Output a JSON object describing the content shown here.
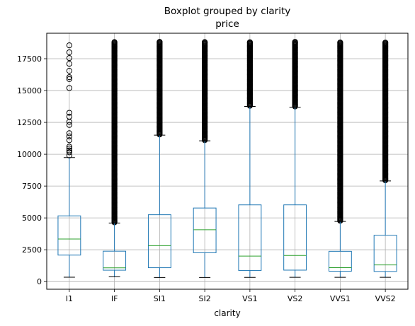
{
  "chart_data": {
    "type": "box",
    "suptitle": "Boxplot grouped by clarity",
    "title": "price",
    "xlabel": "clarity",
    "ylabel": "",
    "ylim": [
      -600,
      19500
    ],
    "yticks": [
      0,
      2500,
      5000,
      7500,
      10000,
      12500,
      15000,
      17500
    ],
    "grid": true,
    "categories": [
      "I1",
      "IF",
      "SI1",
      "SI2",
      "VS1",
      "VS2",
      "VVS1",
      "VVS2"
    ],
    "boxes": [
      {
        "min": 345,
        "q1": 2080,
        "median": 3344,
        "q3": 5161,
        "whisker_high": 9740,
        "outliers": [
          9900,
          10150,
          10300,
          10450,
          10600,
          11100,
          11400,
          11650,
          12300,
          12550,
          12950,
          13250,
          15200,
          15900,
          16050,
          16550,
          17100,
          17550,
          18000,
          18550
        ]
      },
      {
        "min": 369,
        "q1": 895,
        "median": 1080,
        "q3": 2388,
        "whisker_high": 4600,
        "outlier_range": [
          4650,
          18806
        ]
      },
      {
        "min": 326,
        "q1": 1089,
        "median": 2822,
        "q3": 5250,
        "whisker_high": 11500,
        "outlier_range": [
          11550,
          18818
        ]
      },
      {
        "min": 326,
        "q1": 2264,
        "median": 4072,
        "q3": 5777,
        "whisker_high": 11050,
        "outlier_range": [
          11100,
          18804
        ]
      },
      {
        "min": 327,
        "q1": 876,
        "median": 2005,
        "q3": 6023,
        "whisker_high": 13750,
        "outlier_range": [
          13800,
          18795
        ]
      },
      {
        "min": 334,
        "q1": 900,
        "median": 2054,
        "q3": 6024,
        "whisker_high": 13700,
        "outlier_range": [
          13750,
          18823
        ]
      },
      {
        "min": 336,
        "q1": 816,
        "median": 1093,
        "q3": 2379,
        "whisker_high": 4720,
        "outlier_range": [
          4770,
          18777
        ]
      },
      {
        "min": 336,
        "q1": 794,
        "median": 1311,
        "q3": 3638,
        "whisker_high": 7900,
        "outlier_range": [
          7950,
          18768
        ]
      }
    ],
    "colors": {
      "box": "#1f77b4",
      "median": "#2ca02c",
      "grid": "#b0b0b0",
      "outlier": "#000000"
    }
  }
}
